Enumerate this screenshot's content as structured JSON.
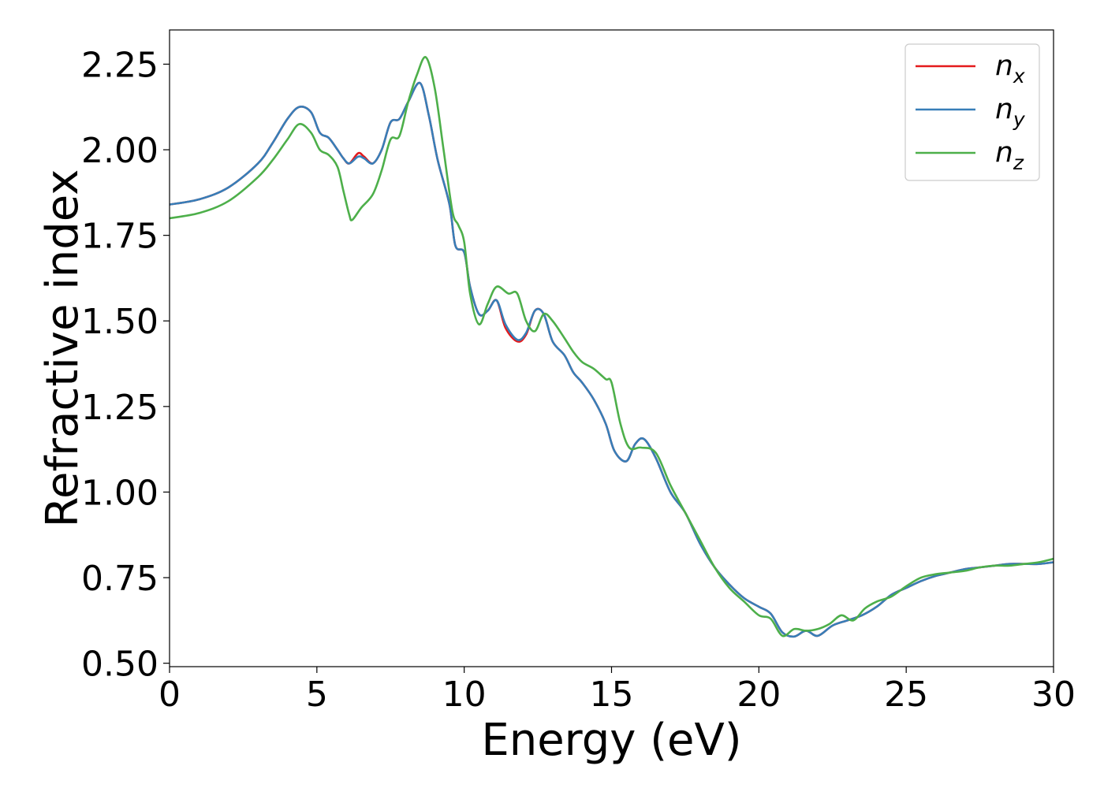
{
  "chart_data": {
    "type": "line",
    "title": "",
    "xlabel": "Energy (eV)",
    "ylabel": "Refractive index",
    "xlim": [
      0,
      30
    ],
    "ylim": [
      0.49,
      2.35
    ],
    "xticks": [
      0,
      5,
      10,
      15,
      20,
      25,
      30
    ],
    "xtick_labels": [
      "0",
      "5",
      "10",
      "15",
      "20",
      "25",
      "30"
    ],
    "yticks": [
      0.5,
      0.75,
      1.0,
      1.25,
      1.5,
      1.75,
      2.0,
      2.25
    ],
    "ytick_labels": [
      "0.50",
      "0.75",
      "1.00",
      "1.25",
      "1.50",
      "1.75",
      "2.00",
      "2.25"
    ],
    "grid": false,
    "legend_position": "top-right",
    "series": [
      {
        "name": "n_x",
        "label_main": "n",
        "label_sub": "x",
        "color": "#e41a1c",
        "x": [
          0,
          1,
          2,
          3,
          3.5,
          4,
          4.4,
          4.8,
          5.1,
          5.4,
          5.7,
          5.9,
          6.1,
          6.4,
          6.6,
          6.9,
          7.2,
          7.5,
          7.8,
          8.1,
          8.5,
          8.8,
          9.1,
          9.5,
          9.7,
          10.0,
          10.2,
          10.5,
          10.8,
          11.1,
          11.4,
          11.8,
          12.1,
          12.4,
          12.7,
          13.0,
          13.4,
          13.7,
          14.0,
          14.4,
          14.8,
          15.1,
          15.5,
          15.8,
          16.1,
          16.5,
          17.0,
          17.5,
          18.0,
          18.5,
          19.0,
          19.5,
          20.0,
          20.4,
          20.8,
          21.2,
          21.6,
          22.0,
          22.5,
          23.0,
          23.5,
          24.0,
          24.5,
          25.0,
          25.5,
          26.0,
          26.5,
          27.0,
          27.5,
          28.0,
          28.5,
          29.0,
          29.5,
          30.0
        ],
        "y": [
          1.84,
          1.855,
          1.89,
          1.96,
          2.02,
          2.09,
          2.125,
          2.11,
          2.05,
          2.035,
          2.0,
          1.975,
          1.96,
          1.99,
          1.98,
          1.96,
          2.0,
          2.08,
          2.09,
          2.14,
          2.195,
          2.1,
          1.97,
          1.84,
          1.72,
          1.7,
          1.6,
          1.52,
          1.53,
          1.56,
          1.48,
          1.44,
          1.46,
          1.53,
          1.52,
          1.44,
          1.4,
          1.35,
          1.32,
          1.27,
          1.2,
          1.12,
          1.09,
          1.14,
          1.155,
          1.1,
          1.0,
          0.94,
          0.85,
          0.78,
          0.73,
          0.69,
          0.665,
          0.645,
          0.59,
          0.578,
          0.595,
          0.58,
          0.61,
          0.625,
          0.64,
          0.665,
          0.7,
          0.72,
          0.74,
          0.755,
          0.765,
          0.775,
          0.78,
          0.785,
          0.79,
          0.79,
          0.79,
          0.795
        ]
      },
      {
        "name": "n_y",
        "label_main": "n",
        "label_sub": "y",
        "color": "#377eb8",
        "x": [
          0,
          1,
          2,
          3,
          3.5,
          4,
          4.4,
          4.8,
          5.1,
          5.4,
          5.7,
          5.9,
          6.1,
          6.4,
          6.6,
          6.9,
          7.2,
          7.5,
          7.8,
          8.1,
          8.5,
          8.8,
          9.1,
          9.5,
          9.7,
          10.0,
          10.2,
          10.5,
          10.8,
          11.1,
          11.4,
          11.8,
          12.1,
          12.4,
          12.7,
          13.0,
          13.4,
          13.7,
          14.0,
          14.4,
          14.8,
          15.1,
          15.5,
          15.8,
          16.1,
          16.5,
          17.0,
          17.5,
          18.0,
          18.5,
          19.0,
          19.5,
          20.0,
          20.4,
          20.8,
          21.2,
          21.6,
          22.0,
          22.5,
          23.0,
          23.5,
          24.0,
          24.5,
          25.0,
          25.5,
          26.0,
          26.5,
          27.0,
          27.5,
          28.0,
          28.5,
          29.0,
          29.5,
          30.0
        ],
        "y": [
          1.84,
          1.855,
          1.89,
          1.96,
          2.02,
          2.09,
          2.125,
          2.11,
          2.05,
          2.035,
          2.0,
          1.975,
          1.96,
          1.98,
          1.975,
          1.96,
          2.0,
          2.08,
          2.09,
          2.14,
          2.195,
          2.1,
          1.97,
          1.84,
          1.72,
          1.7,
          1.6,
          1.52,
          1.53,
          1.56,
          1.49,
          1.445,
          1.465,
          1.53,
          1.52,
          1.44,
          1.4,
          1.35,
          1.32,
          1.27,
          1.2,
          1.12,
          1.09,
          1.14,
          1.155,
          1.1,
          1.0,
          0.94,
          0.85,
          0.78,
          0.73,
          0.69,
          0.665,
          0.645,
          0.59,
          0.578,
          0.595,
          0.58,
          0.61,
          0.625,
          0.64,
          0.665,
          0.7,
          0.72,
          0.74,
          0.755,
          0.765,
          0.775,
          0.78,
          0.785,
          0.79,
          0.79,
          0.79,
          0.795
        ]
      },
      {
        "name": "n_z",
        "label_main": "n",
        "label_sub": "z",
        "color": "#4daf4a",
        "x": [
          0,
          1,
          2,
          3,
          3.5,
          4,
          4.4,
          4.8,
          5.1,
          5.4,
          5.7,
          5.9,
          6.1,
          6.2,
          6.5,
          6.9,
          7.2,
          7.5,
          7.8,
          8.1,
          8.4,
          8.7,
          9.0,
          9.3,
          9.6,
          9.8,
          10.0,
          10.2,
          10.5,
          10.8,
          11.1,
          11.5,
          11.8,
          12.1,
          12.4,
          12.7,
          13.0,
          13.4,
          13.7,
          14.0,
          14.4,
          14.8,
          15.0,
          15.3,
          15.6,
          16.0,
          16.5,
          17.0,
          17.5,
          18.0,
          18.5,
          19.0,
          19.5,
          20.0,
          20.4,
          20.8,
          21.2,
          21.6,
          22.0,
          22.4,
          22.8,
          23.2,
          23.6,
          24.0,
          24.5,
          25.0,
          25.5,
          26.0,
          26.5,
          27.0,
          27.5,
          28.0,
          28.5,
          29.0,
          29.5,
          30.0
        ],
        "y": [
          1.8,
          1.815,
          1.85,
          1.92,
          1.97,
          2.03,
          2.075,
          2.05,
          2.0,
          1.985,
          1.95,
          1.88,
          1.81,
          1.795,
          1.83,
          1.87,
          1.94,
          2.03,
          2.04,
          2.14,
          2.22,
          2.27,
          2.18,
          2.0,
          1.82,
          1.78,
          1.73,
          1.58,
          1.49,
          1.55,
          1.6,
          1.58,
          1.58,
          1.5,
          1.47,
          1.52,
          1.5,
          1.45,
          1.41,
          1.38,
          1.36,
          1.33,
          1.32,
          1.2,
          1.13,
          1.13,
          1.115,
          1.02,
          0.94,
          0.86,
          0.78,
          0.72,
          0.68,
          0.64,
          0.63,
          0.58,
          0.6,
          0.595,
          0.6,
          0.615,
          0.64,
          0.625,
          0.66,
          0.68,
          0.695,
          0.725,
          0.75,
          0.76,
          0.765,
          0.77,
          0.78,
          0.785,
          0.785,
          0.79,
          0.795,
          0.805
        ]
      }
    ]
  }
}
